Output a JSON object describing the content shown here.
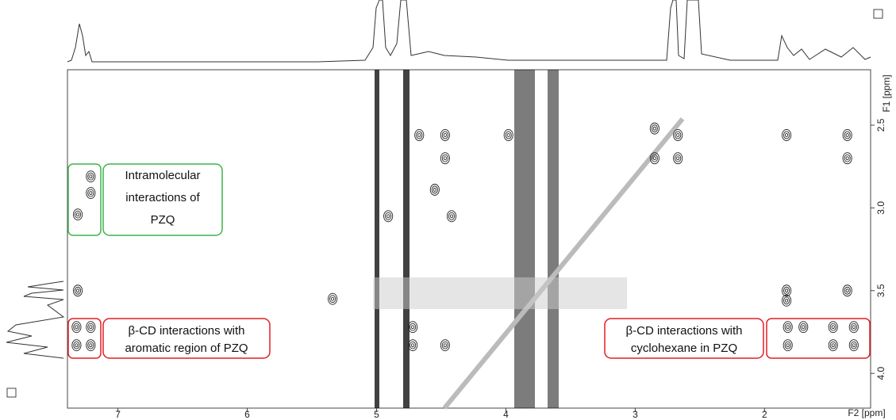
{
  "chart_data": {
    "type": "contour",
    "x_label": "F2 [ppm]",
    "y_label": "F1 [ppm]",
    "xlim": [
      7.39,
      1.18
    ],
    "xticks": [
      7,
      6,
      5,
      4,
      3,
      2
    ],
    "ylim": [
      2.165,
      4.21
    ],
    "yticks": [
      2.5,
      {
        "value": 3,
        "label": "3.0"
      },
      3.5,
      {
        "value": 4,
        "label": "4.0"
      }
    ],
    "color": "#222222",
    "x": [
      7.21,
      7.21,
      7.31,
      7.31,
      7.32,
      7.21,
      7.32,
      7.21,
      4.67,
      4.47,
      4.47,
      4.55,
      4.91,
      4.42,
      5.34,
      4.72,
      4.72,
      4.47,
      3.98,
      2.85,
      2.67,
      2.85,
      2.67,
      1.83,
      1.36,
      1.36,
      1.83,
      1.36,
      1.82,
      1.7,
      1.47,
      1.31,
      1.82,
      1.47,
      1.31,
      1.83
    ],
    "y": [
      2.81,
      2.91,
      3.04,
      3.5,
      3.72,
      3.72,
      3.83,
      3.83,
      2.56,
      2.56,
      2.7,
      2.89,
      3.05,
      3.05,
      3.55,
      3.72,
      3.83,
      3.83,
      2.56,
      2.52,
      2.56,
      2.7,
      2.7,
      2.56,
      2.56,
      2.7,
      3.5,
      3.5,
      3.72,
      3.72,
      3.72,
      3.72,
      3.83,
      3.83,
      3.83,
      3.56
    ],
    "annotations": [
      {
        "lines": [
          "Intramolecular",
          "interactions of",
          "PZQ"
        ],
        "color": "#3cb44b"
      },
      {
        "lines": [
          "β-CD interactions with",
          "aromatic region of PZQ"
        ],
        "color": "#e31e24"
      },
      {
        "lines": [
          "β-CD interactions with",
          "cyclohexane in PZQ"
        ],
        "color": "#e31e24"
      }
    ]
  }
}
